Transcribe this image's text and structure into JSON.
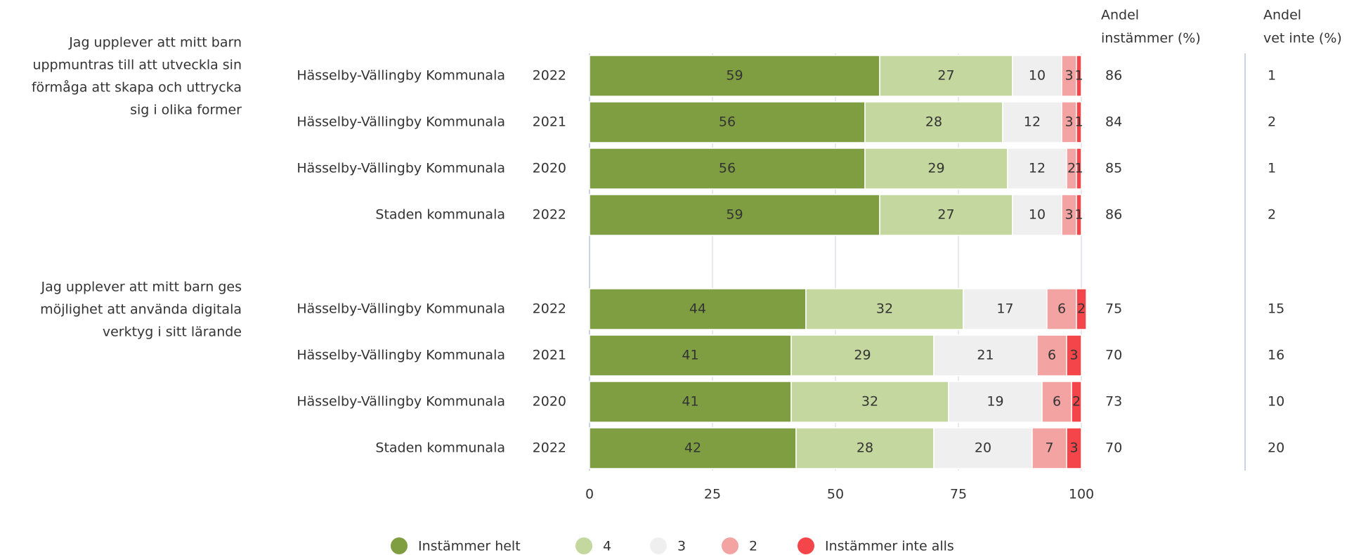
{
  "chart_data": {
    "type": "bar",
    "orientation": "horizontal",
    "stacked": true,
    "group_labels": [
      [
        "Jag upplever att mitt barn",
        "uppmuntras till att utveckla sin",
        "förmåga att skapa och uttrycka",
        "sig i olika former"
      ],
      [
        "Jag upplever att mitt barn ges",
        "möjlighet att använda digitala",
        "verktyg i sitt lärande"
      ]
    ],
    "categories": [
      "Hässelby-Vällingby Kommunala",
      "Hässelby-Vällingby Kommunala",
      "Hässelby-Vällingby Kommunala",
      "Staden kommunala",
      "Hässelby-Vällingby Kommunala",
      "Hässelby-Vällingby Kommunala",
      "Hässelby-Vällingby Kommunala",
      "Staden kommunala"
    ],
    "years": [
      "2022",
      "2021",
      "2020",
      "2022",
      "2022",
      "2021",
      "2020",
      "2022"
    ],
    "series": [
      {
        "name": "Instämmer helt",
        "color": "#7f9e42",
        "label_color": "#ffffff",
        "values": [
          59,
          56,
          56,
          59,
          44,
          41,
          41,
          42
        ]
      },
      {
        "name": "4",
        "color": "#c4d79e",
        "label_color": "#ffffff",
        "values": [
          27,
          28,
          29,
          27,
          32,
          29,
          32,
          28
        ]
      },
      {
        "name": "3",
        "color": "#efefef",
        "label_color": "#111111",
        "values": [
          10,
          12,
          12,
          10,
          17,
          21,
          19,
          20
        ]
      },
      {
        "name": "2",
        "color": "#f4a3a3",
        "label_color": "#111111",
        "values": [
          3,
          3,
          2,
          3,
          6,
          6,
          6,
          7
        ]
      },
      {
        "name": "Instämmer inte alls",
        "color": "#f4464a",
        "label_color": "#ffffff",
        "values": [
          1,
          1,
          1,
          1,
          2,
          3,
          2,
          3
        ]
      }
    ],
    "columns": [
      {
        "header": [
          "Andel",
          "instämmer (%)"
        ],
        "values": [
          86,
          84,
          85,
          86,
          75,
          70,
          73,
          70
        ]
      },
      {
        "header": [
          "Andel",
          "vet inte (%)"
        ],
        "values": [
          1,
          2,
          1,
          2,
          15,
          16,
          10,
          20
        ]
      }
    ],
    "xlim": [
      0,
      100
    ],
    "xticks": [
      0,
      25,
      50,
      75,
      100
    ],
    "grid": true
  }
}
